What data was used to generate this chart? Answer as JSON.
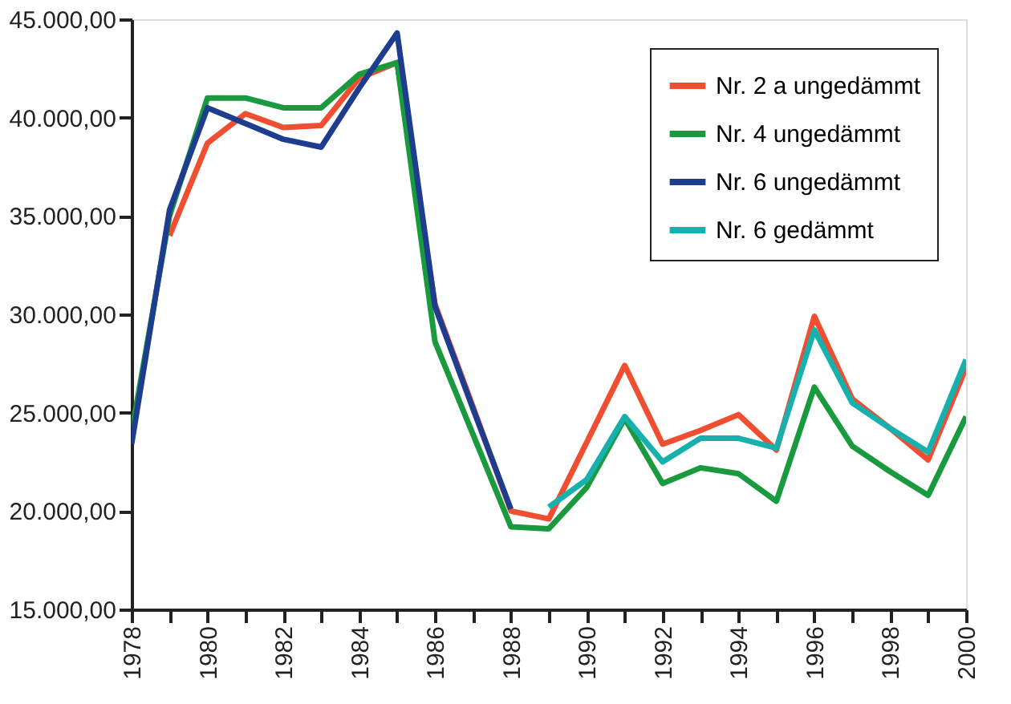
{
  "chart_data": {
    "type": "line",
    "x": [
      1978,
      1979,
      1980,
      1981,
      1982,
      1983,
      1984,
      1985,
      1986,
      1987,
      1988,
      1989,
      1990,
      1991,
      1992,
      1993,
      1994,
      1995,
      1996,
      1997,
      1998,
      1999,
      2000
    ],
    "series": [
      {
        "name": "Nr. 2 a ungedämmt",
        "color": "#f04e30",
        "values": [
          null,
          34000,
          38700,
          40200,
          39500,
          39600,
          42000,
          42800,
          30500,
          25300,
          20000,
          19600,
          23500,
          27400,
          23400,
          24100,
          24900,
          23100,
          29900,
          25700,
          24200,
          22600,
          27300
        ]
      },
      {
        "name": "Nr. 4 ungedämmt",
        "color": "#1a9a3e",
        "values": [
          24000,
          35000,
          41000,
          41000,
          40500,
          40500,
          42200,
          42800,
          28600,
          23900,
          19200,
          19100,
          21200,
          24700,
          21400,
          22200,
          21900,
          20500,
          26300,
          23300,
          22000,
          20800,
          24800
        ]
      },
      {
        "name": "Nr. 6 ungedämmt",
        "color": "#1f3d8f",
        "values": [
          23400,
          35300,
          40500,
          39700,
          38900,
          38500,
          41500,
          44300,
          30400,
          25200,
          20100,
          null,
          null,
          null,
          null,
          null,
          null,
          null,
          null,
          null,
          null,
          null,
          null
        ]
      },
      {
        "name": "Nr. 6 gedämmt",
        "color": "#17b0ad",
        "values": [
          null,
          null,
          null,
          null,
          null,
          null,
          null,
          null,
          null,
          null,
          null,
          20200,
          21600,
          24800,
          22500,
          23700,
          23700,
          23200,
          29200,
          25500,
          24200,
          23000,
          27700
        ]
      }
    ],
    "xlim": [
      1978,
      2000
    ],
    "xticks": [
      1978,
      {
        "value": 1979,
        "label": null
      },
      1980,
      {
        "value": 1981,
        "label": null
      },
      1982,
      {
        "value": 1983,
        "label": null
      },
      1984,
      {
        "value": 1985,
        "label": null
      },
      1986,
      {
        "value": 1987,
        "label": null
      },
      1988,
      {
        "value": 1989,
        "label": null
      },
      1990,
      {
        "value": 1991,
        "label": null
      },
      1992,
      {
        "value": 1993,
        "label": null
      },
      1994,
      {
        "value": 1995,
        "label": null
      },
      1996,
      {
        "value": 1997,
        "label": null
      },
      1998,
      {
        "value": 1999,
        "label": null
      },
      2000
    ],
    "ylim": [
      15000,
      45000
    ],
    "yticks": [
      {
        "value": 15000,
        "label": "15.000,00"
      },
      {
        "value": 20000,
        "label": "20.000,00"
      },
      {
        "value": 25000,
        "label": "25.000,00"
      },
      {
        "value": 30000,
        "label": "30.000,00"
      },
      {
        "value": 35000,
        "label": "35.000,00"
      },
      {
        "value": 40000,
        "label": "40.000,00"
      },
      {
        "value": 45000,
        "label": "45.000,00"
      }
    ],
    "grid": false,
    "legend": "top right",
    "marker": "none",
    "line_style": "solid"
  }
}
